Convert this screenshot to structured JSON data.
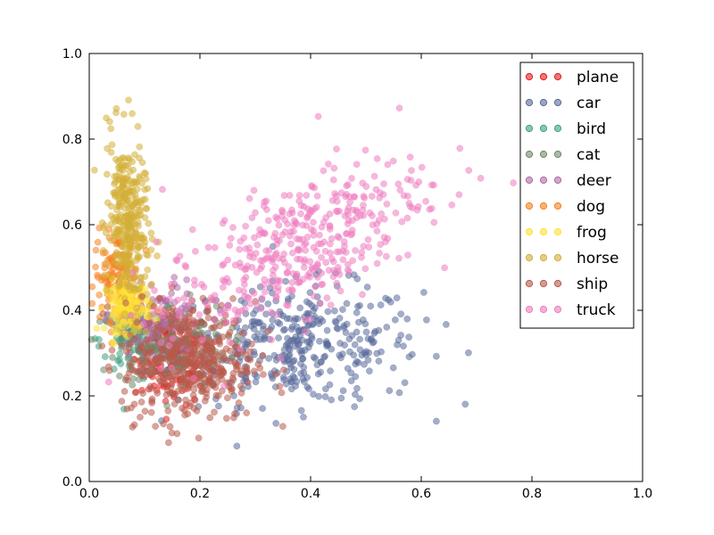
{
  "chart_data": {
    "type": "scatter",
    "xlim": [
      0,
      1
    ],
    "ylim": [
      0,
      1
    ],
    "x_ticks": [
      "0.0",
      "0.2",
      "0.4",
      "0.6",
      "0.8",
      "1.0"
    ],
    "y_ticks": [
      "0.0",
      "0.2",
      "0.4",
      "0.6",
      "0.8",
      "1.0"
    ],
    "grid": false,
    "legend_position": "top-right",
    "series": [
      {
        "name": "plane",
        "color": "#e41a1c",
        "cluster": {
          "cx": 0.15,
          "cy": 0.29,
          "sx": 0.035,
          "sy": 0.055,
          "n": 140
        }
      },
      {
        "name": "car",
        "color": "#5a6a9a",
        "cluster": {
          "cx": 0.38,
          "cy": 0.32,
          "sx": 0.11,
          "sy": 0.07,
          "n": 380
        }
      },
      {
        "name": "bird",
        "color": "#40a080",
        "cluster": {
          "cx": 0.08,
          "cy": 0.33,
          "sx": 0.03,
          "sy": 0.04,
          "n": 120
        }
      },
      {
        "name": "cat",
        "color": "#708a6a",
        "cluster": {
          "cx": 0.15,
          "cy": 0.32,
          "sx": 0.05,
          "sy": 0.05,
          "n": 150
        }
      },
      {
        "name": "deer",
        "color": "#b06aa8",
        "cluster": {
          "cx": 0.12,
          "cy": 0.37,
          "sx": 0.04,
          "sy": 0.05,
          "n": 120
        }
      },
      {
        "name": "dog",
        "color": "#f58220",
        "cluster": {
          "cx": 0.05,
          "cy": 0.48,
          "sx": 0.02,
          "sy": 0.05,
          "n": 130
        }
      },
      {
        "name": "frog",
        "color": "#ffe135",
        "cluster": {
          "cx": 0.07,
          "cy": 0.41,
          "sx": 0.02,
          "sy": 0.03,
          "n": 140
        }
      },
      {
        "name": "horse",
        "color": "#d4af37",
        "cluster": {
          "cx": 0.07,
          "cy": 0.6,
          "sx": 0.018,
          "sy": 0.1,
          "n": 320
        }
      },
      {
        "name": "ship",
        "color": "#b85a4a",
        "cluster": {
          "cx": 0.18,
          "cy": 0.28,
          "sx": 0.06,
          "sy": 0.07,
          "n": 420
        }
      },
      {
        "name": "truck",
        "color": "#ee7cc0",
        "cluster": {
          "cx": 0.37,
          "cy": 0.54,
          "sx": 0.12,
          "sy": 0.08,
          "n": 420
        }
      }
    ]
  }
}
